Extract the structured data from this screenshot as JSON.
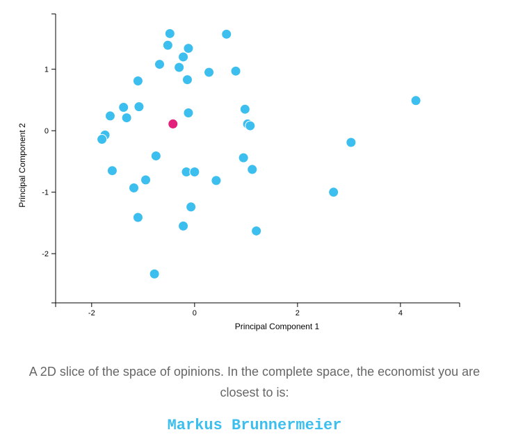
{
  "chart_data": {
    "type": "scatter",
    "xlabel": "Principal Component 1",
    "ylabel": "Principal Component 2",
    "xlim": [
      -2.7,
      5.15
    ],
    "ylim": [
      -2.8,
      1.9
    ],
    "xticks": [
      "-2",
      "0",
      "2",
      "4"
    ],
    "xtick_values": [
      -2,
      0,
      2,
      4
    ],
    "yticks": [
      "1",
      "0",
      "-1",
      "-2"
    ],
    "ytick_values": [
      1,
      0,
      -1,
      -2
    ],
    "grid": false,
    "colors": {
      "point": "#3cbfee",
      "highlight": "#e3217b",
      "outline": "#ffffff"
    },
    "points": [
      {
        "x": -0.48,
        "y": 1.58
      },
      {
        "x": 0.62,
        "y": 1.57
      },
      {
        "x": -0.52,
        "y": 1.39
      },
      {
        "x": -0.12,
        "y": 1.34
      },
      {
        "x": -0.22,
        "y": 1.2
      },
      {
        "x": -0.68,
        "y": 1.08
      },
      {
        "x": -0.3,
        "y": 1.03
      },
      {
        "x": 0.28,
        "y": 0.95
      },
      {
        "x": 0.8,
        "y": 0.97
      },
      {
        "x": -1.1,
        "y": 0.81
      },
      {
        "x": -0.14,
        "y": 0.83
      },
      {
        "x": -1.38,
        "y": 0.38
      },
      {
        "x": -1.08,
        "y": 0.39
      },
      {
        "x": -1.64,
        "y": 0.24
      },
      {
        "x": -1.32,
        "y": 0.21
      },
      {
        "x": -0.12,
        "y": 0.29
      },
      {
        "x": 0.98,
        "y": 0.35
      },
      {
        "x": 1.03,
        "y": 0.11
      },
      {
        "x": 1.08,
        "y": 0.08
      },
      {
        "x": 4.3,
        "y": 0.49
      },
      {
        "x": -1.74,
        "y": -0.07
      },
      {
        "x": -1.8,
        "y": -0.14
      },
      {
        "x": 3.04,
        "y": -0.19
      },
      {
        "x": -0.75,
        "y": -0.41
      },
      {
        "x": 0.95,
        "y": -0.44
      },
      {
        "x": -1.6,
        "y": -0.65
      },
      {
        "x": -0.16,
        "y": -0.67
      },
      {
        "x": 0.0,
        "y": -0.67
      },
      {
        "x": 1.12,
        "y": -0.63
      },
      {
        "x": -0.95,
        "y": -0.8
      },
      {
        "x": 0.42,
        "y": -0.81
      },
      {
        "x": -1.18,
        "y": -0.93
      },
      {
        "x": 2.7,
        "y": -1.0
      },
      {
        "x": -0.07,
        "y": -1.24
      },
      {
        "x": -1.1,
        "y": -1.41
      },
      {
        "x": -0.22,
        "y": -1.55
      },
      {
        "x": 1.2,
        "y": -1.63
      },
      {
        "x": -0.78,
        "y": -2.33
      }
    ],
    "highlight": {
      "x": -0.42,
      "y": 0.11
    }
  },
  "caption": "A 2D slice of the space of opinions. In the complete space, the economist you are closest to is:",
  "economist_name": "Markus Brunnermeier"
}
